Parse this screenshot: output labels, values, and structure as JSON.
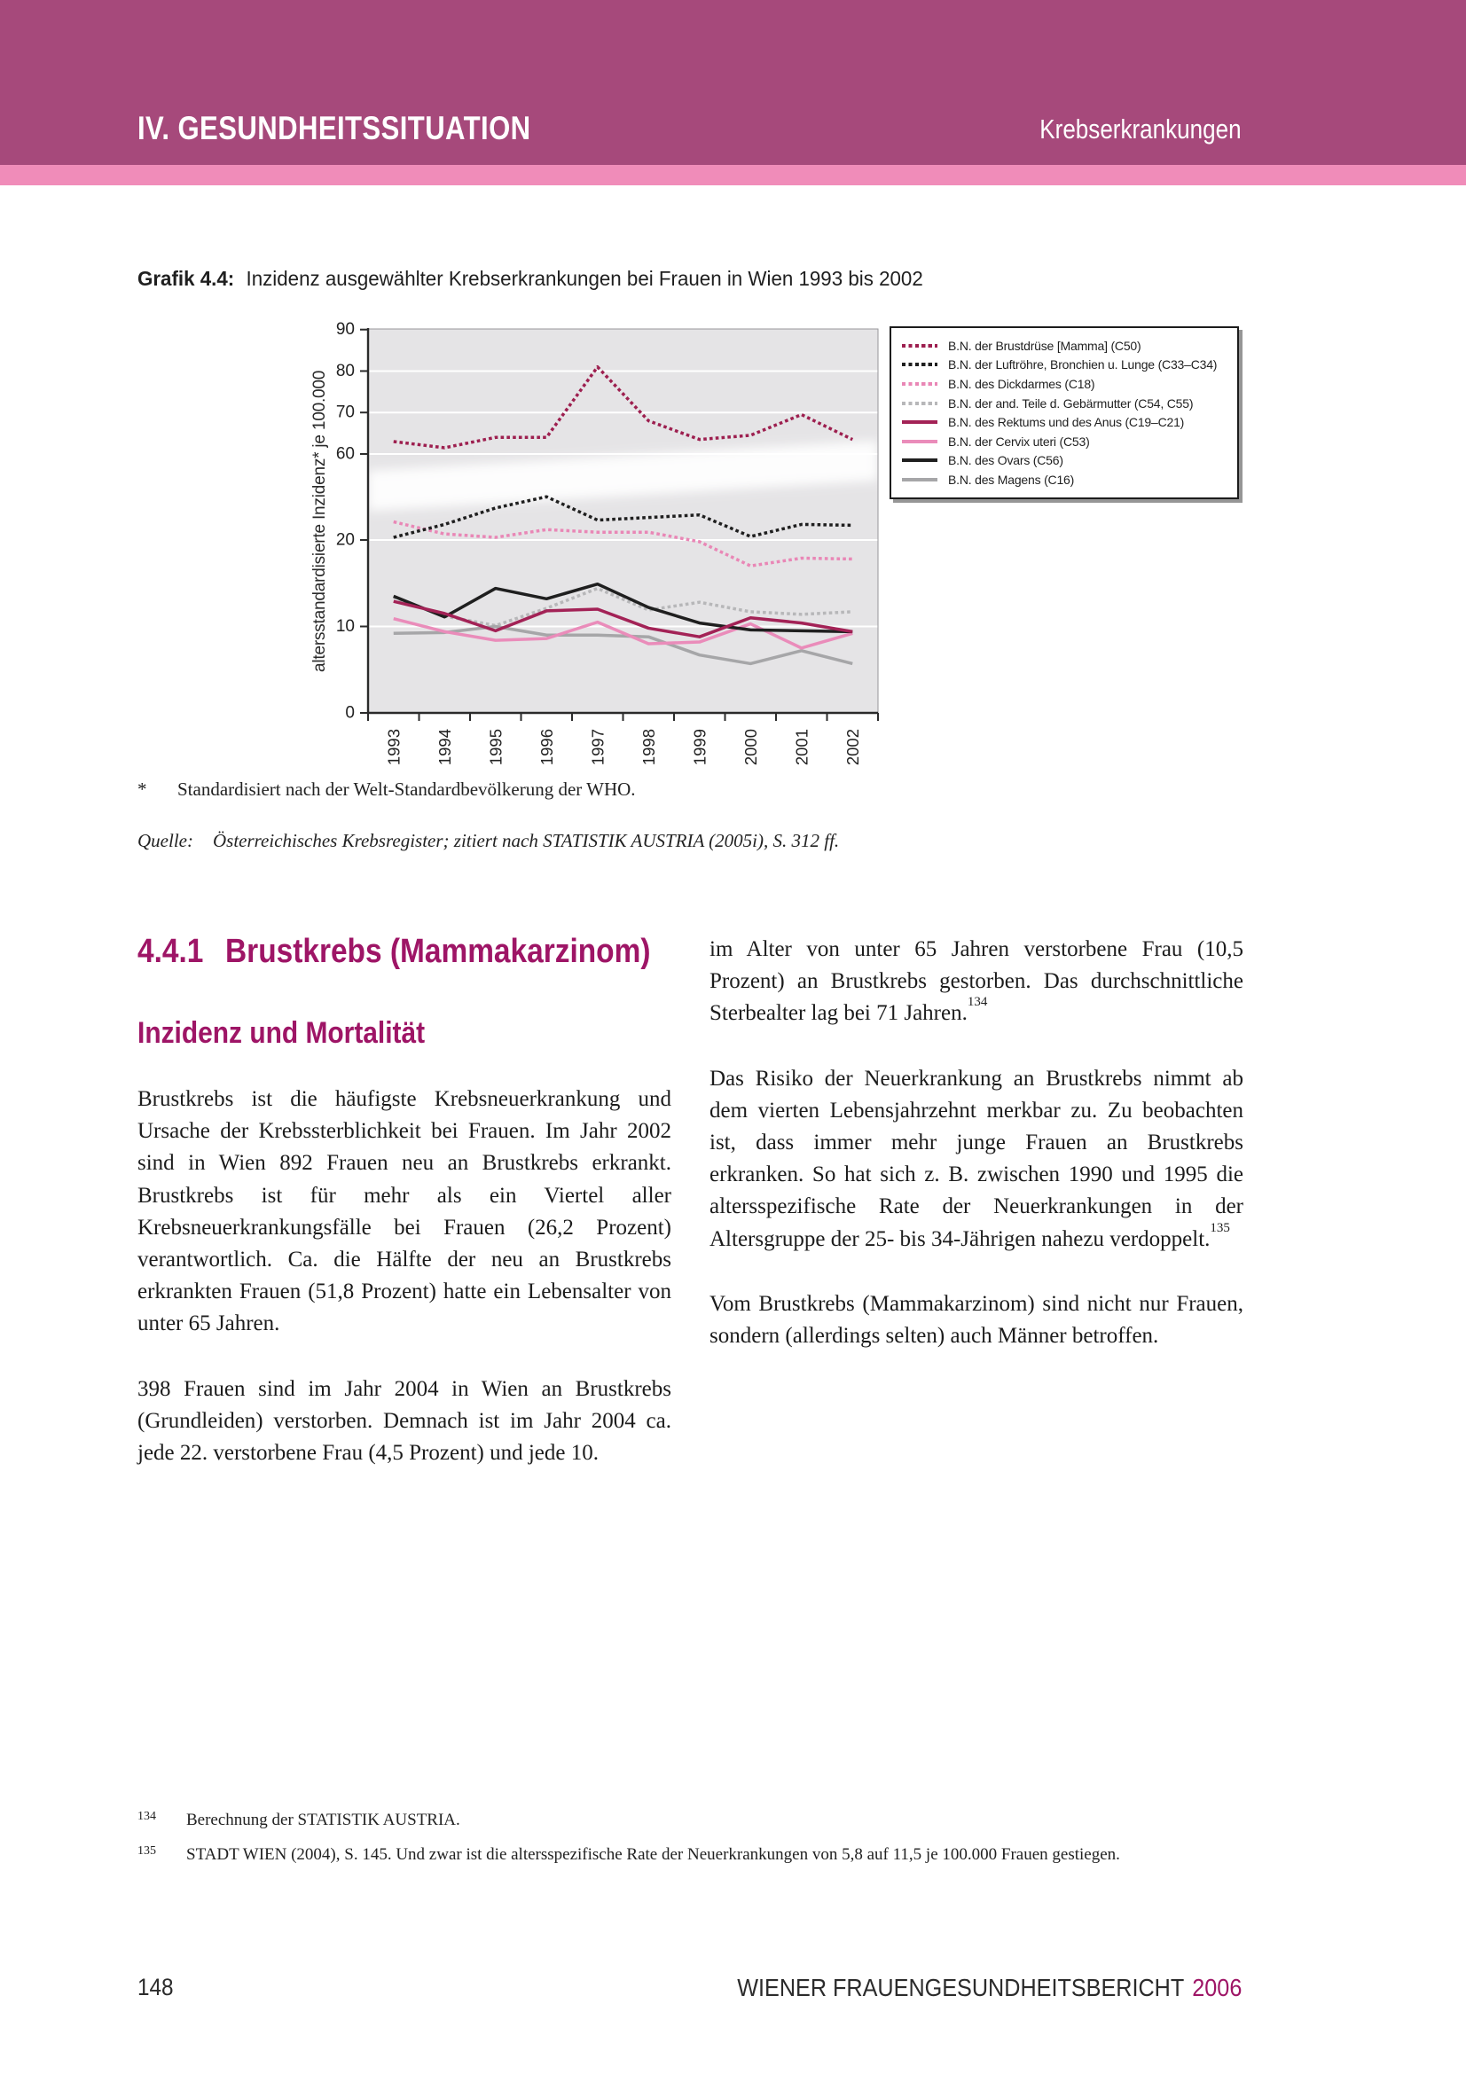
{
  "header": {
    "left_title": "IV. GESUNDHEITSSITUATION",
    "right_title": "Krebserkrankungen"
  },
  "figure": {
    "label": "Grafik 4.4:",
    "title": "Inzidenz ausgewählter Krebserkrankungen bei Frauen in Wien 1993 bis 2002"
  },
  "chart_data": {
    "type": "line",
    "title": "Grafik 4.4: Inzidenz ausgewählter Krebserkrankungen bei Frauen in Wien 1993 bis 2002",
    "x": [
      1993,
      1994,
      1995,
      1996,
      1997,
      1998,
      1999,
      2000,
      2001,
      2002
    ],
    "xlabel": "",
    "ylabel": "altersstandardisierte Inzidenz* je 100.000",
    "yticks": [
      0,
      10,
      20,
      60,
      70,
      80,
      90
    ],
    "ylim": [
      0,
      90
    ],
    "axis_break": {
      "between": [
        26,
        58.5
      ]
    },
    "grid": "horizontal-white",
    "plot_bg": "#e5e4e6",
    "legend_position": "outside-right-top",
    "series": [
      {
        "name": "B.N. der Brustdrüse [Mamma] (C50)",
        "color": "#9d1f4f",
        "style": "dotted",
        "values": [
          63,
          61.5,
          64,
          64,
          81,
          68,
          63.5,
          64.5,
          69.5,
          63.5
        ]
      },
      {
        "name": "B.N. der Luftröhre, Bronchien u. Lunge (C33–C34)",
        "color": "#1f1f1f",
        "style": "dotted",
        "values": [
          20.3,
          21.8,
          23.7,
          25,
          22.3,
          22.6,
          22.9,
          20.4,
          21.8,
          21.7
        ]
      },
      {
        "name": "B.N. des Dickdarmes (C18)",
        "color": "#e987b6",
        "style": "dotted",
        "values": [
          22.1,
          20.7,
          20.3,
          21.2,
          20.9,
          20.9,
          19.8,
          17,
          17.9,
          17.8
        ]
      },
      {
        "name": "B.N. der and. Teile d. Gebärmutter (C54, C55)",
        "color": "#b7b7b9",
        "style": "dotted",
        "values": [
          13.4,
          11.2,
          10.1,
          12.1,
          14.4,
          11.9,
          12.8,
          11.7,
          11.4,
          11.7
        ]
      },
      {
        "name": "B.N. des Rektums und des Anus (C19–C21)",
        "color": "#a32256",
        "style": "solid",
        "values": [
          12.9,
          11.5,
          9.5,
          11.8,
          12,
          9.8,
          8.8,
          11,
          10.4,
          9.4
        ]
      },
      {
        "name": "B.N. der Cervix uteri (C53)",
        "color": "#ea8cba",
        "style": "solid",
        "values": [
          10.9,
          9.4,
          8.4,
          8.6,
          10.5,
          8,
          8.2,
          10.3,
          7.5,
          9.2
        ]
      },
      {
        "name": "B.N. des Ovars (C56)",
        "color": "#1f1f1f",
        "style": "solid",
        "values": [
          13.5,
          11.1,
          14.4,
          13.2,
          14.9,
          12.2,
          10.4,
          9.6,
          9.5,
          9.4
        ]
      },
      {
        "name": "B.N. des Magens (C16)",
        "color": "#a6a6a8",
        "style": "solid",
        "values": [
          9.2,
          9.3,
          10,
          9,
          9,
          8.8,
          6.7,
          5.7,
          7.2,
          5.7
        ]
      }
    ],
    "draw_order": [
      3,
      2,
      1,
      0,
      7,
      5,
      6,
      4
    ]
  },
  "notes": {
    "star_marker": "*",
    "star_text": "Standardisiert nach der Welt-Standardbevölkerung der WHO.",
    "source_label": "Quelle:",
    "source_text": "Österreichisches Krebsregister; zitiert nach STATISTIK AUSTRIA (2005i), S. 312 ff."
  },
  "section": {
    "number": "4.4.1",
    "title": "Brustkrebs (Mammakarzinom)",
    "subtitle": "Inzidenz und Mortalität"
  },
  "columns": {
    "left": [
      [
        {
          "t": "Brustkrebs ist die häufigste Krebsneuerkrankung und Ursache der Krebssterblichkeit bei Frauen. Im Jahr 2002 sind in Wien 892 Frauen neu an Brustkrebs erkrankt. Brustkrebs ist für mehr als ein Viertel aller Krebsneuerkrankungsfälle bei Frauen (26,2 Prozent) verantwortlich. Ca. die Hälfte der neu an Brustkrebs erkrankten Frauen (51,8 Prozent) hatte ein Lebensalter von unter 65 Jahren."
        }
      ],
      [
        {
          "t": "398 Frauen sind im Jahr 2004 in Wien an Brustkrebs (Grundleiden) verstorben. Demnach ist im Jahr 2004 ca. jede 22. verstorbene Frau (4,5 Prozent) und jede 10."
        }
      ]
    ],
    "right": [
      [
        {
          "t": "im Alter von unter 65 Jahren verstorbene Frau (10,5 Prozent) an Brustkrebs gestorben. Das durchschnittliche Sterbealter lag bei 71 Jahren."
        },
        {
          "sup": "134"
        }
      ],
      [
        {
          "t": "Das Risiko der Neuerkrankung an Brustkrebs nimmt ab dem vierten Lebensjahrzehnt merkbar zu. Zu beobachten ist, dass immer mehr junge Frauen an Brustkrebs erkranken. So hat sich z. B. zwischen 1990 und 1995 die altersspezifische Rate der Neuerkrankungen in der Altersgruppe der 25- bis 34-Jährigen nahezu verdoppelt."
        },
        {
          "sup": "135"
        }
      ],
      [
        {
          "t": "Vom Brustkrebs (Mammakarzinom) sind nicht nur Frauen, sondern (allerdings selten) auch Männer betroffen."
        }
      ]
    ]
  },
  "footnotes": [
    {
      "num": "134",
      "text": "Berechnung der STATISTIK AUSTRIA."
    },
    {
      "num": "135",
      "text": "STADT WIEN (2004), S. 145. Und zwar ist die altersspezifische Rate der Neuerkrankungen von 5,8 auf 11,5 je 100.000 Frauen gestiegen."
    }
  ],
  "footer": {
    "page_number": "148",
    "report_title": "WIENER FRAUENGESUNDHEITSBERICHT",
    "year": "2006"
  }
}
